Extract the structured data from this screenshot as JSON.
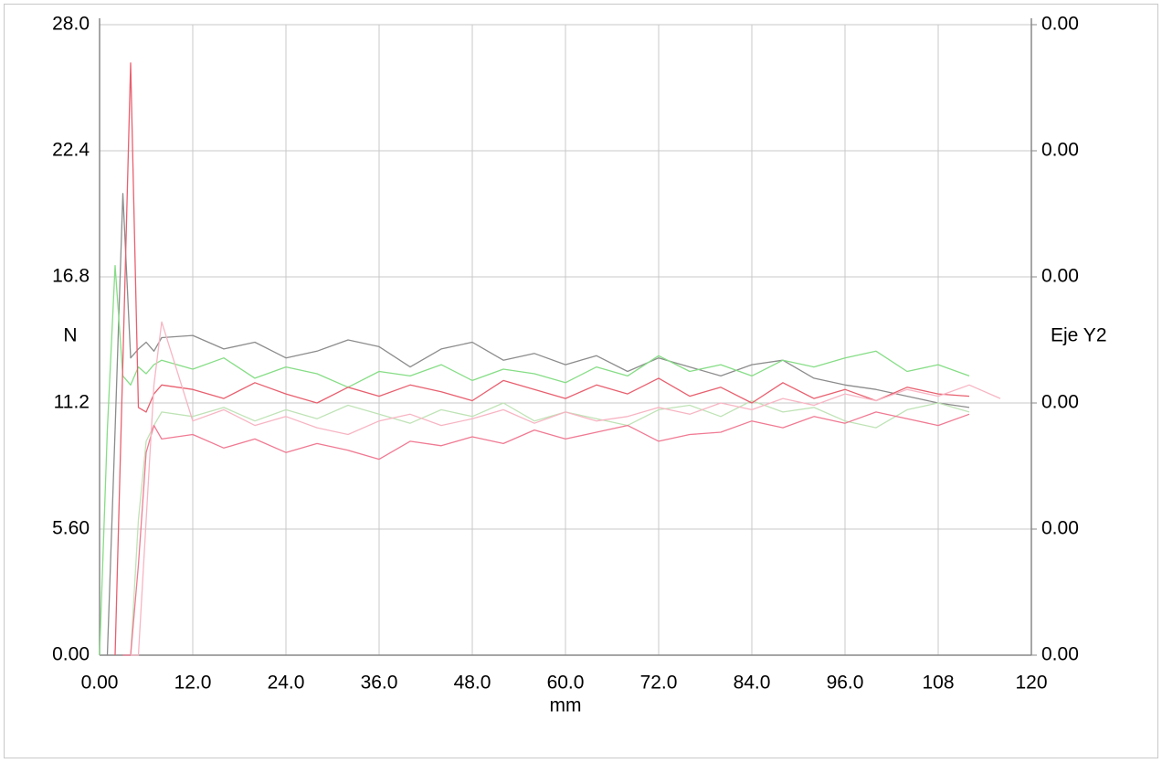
{
  "chart_data": {
    "type": "line",
    "x_label": "mm",
    "y_label": "N",
    "y2_label": "Eje Y2",
    "xlim": [
      0,
      120
    ],
    "ylim": [
      0,
      28
    ],
    "y2lim": [
      0,
      0.005
    ],
    "grid": true,
    "xticks": [
      {
        "value": 0,
        "label": "0.00"
      },
      {
        "value": 12,
        "label": "12.0"
      },
      {
        "value": 24,
        "label": "24.0"
      },
      {
        "value": 36,
        "label": "36.0"
      },
      {
        "value": 48,
        "label": "48.0"
      },
      {
        "value": 60,
        "label": "60.0"
      },
      {
        "value": 72,
        "label": "72.0"
      },
      {
        "value": 84,
        "label": "84.0"
      },
      {
        "value": 96,
        "label": "96.0"
      },
      108,
      120
    ],
    "yticks": [
      {
        "value": 0,
        "label": "0.00"
      },
      {
        "value": 5.6,
        "label": "5.60"
      },
      11.2,
      16.8,
      22.4,
      {
        "value": 28,
        "label": "28.0"
      }
    ],
    "y2ticks": [
      {
        "value": 0,
        "label": "0.00"
      },
      {
        "value": 0.001,
        "label": "0.00"
      },
      {
        "value": 0.002,
        "label": "0.00"
      },
      {
        "value": 0.003,
        "label": "0.00"
      },
      {
        "value": 0.004,
        "label": "0.00"
      },
      {
        "value": 0.005,
        "label": "0.00"
      }
    ],
    "x": [
      0,
      1,
      2,
      3,
      4,
      5,
      6,
      7,
      8,
      12,
      16,
      20,
      24,
      28,
      32,
      36,
      40,
      44,
      48,
      52,
      56,
      60,
      64,
      68,
      72,
      76,
      80,
      84,
      88,
      92,
      96,
      100,
      104,
      108,
      112,
      116
    ],
    "series": [
      {
        "color": "#8c8c8c",
        "values": [
          null,
          0,
          10,
          20.5,
          13.2,
          13.6,
          13.9,
          13.5,
          14.1,
          14.2,
          13.6,
          13.9,
          13.2,
          13.5,
          14.0,
          13.7,
          12.8,
          13.6,
          13.9,
          13.1,
          13.4,
          12.9,
          13.3,
          12.6,
          13.2,
          12.8,
          12.4,
          12.9,
          13.1,
          12.3,
          12.0,
          11.8,
          11.5,
          11.2,
          11.0,
          null
        ]
      },
      {
        "color": "#86dd86",
        "values": [
          0,
          10,
          17.3,
          12.4,
          12.0,
          12.8,
          12.5,
          12.9,
          13.1,
          12.7,
          13.2,
          12.3,
          12.8,
          12.5,
          11.9,
          12.6,
          12.4,
          12.9,
          12.2,
          12.7,
          12.5,
          12.1,
          12.8,
          12.4,
          13.3,
          12.6,
          12.9,
          12.4,
          13.1,
          12.8,
          13.2,
          13.5,
          12.6,
          12.9,
          12.4,
          null
        ]
      },
      {
        "color": "#bfe3b6",
        "values": [
          null,
          null,
          null,
          null,
          0,
          6,
          9.5,
          10.2,
          10.8,
          10.6,
          11.0,
          10.4,
          10.9,
          10.5,
          11.1,
          10.7,
          10.3,
          10.9,
          10.6,
          11.2,
          10.4,
          10.8,
          10.5,
          10.2,
          10.9,
          11.1,
          10.6,
          11.3,
          10.8,
          11.0,
          10.4,
          10.1,
          10.9,
          11.2,
          10.8,
          null
        ]
      },
      {
        "color": "#e8606f",
        "values": [
          null,
          null,
          0,
          13,
          26.3,
          11.0,
          10.8,
          11.6,
          12.0,
          11.8,
          11.4,
          12.1,
          11.6,
          11.2,
          11.9,
          11.5,
          12.0,
          11.7,
          11.3,
          12.2,
          11.8,
          11.4,
          12.0,
          11.6,
          12.3,
          11.5,
          11.9,
          11.2,
          12.1,
          11.4,
          11.8,
          11.3,
          11.9,
          11.6,
          11.5,
          null
        ]
      },
      {
        "color": "#f07a93",
        "values": [
          null,
          null,
          null,
          0,
          0,
          4,
          9,
          10.2,
          9.6,
          9.8,
          9.2,
          9.6,
          9.0,
          9.4,
          9.1,
          8.7,
          9.5,
          9.3,
          9.7,
          9.4,
          10.0,
          9.6,
          9.9,
          10.2,
          9.5,
          9.8,
          9.9,
          10.4,
          10.1,
          10.6,
          10.3,
          10.8,
          10.5,
          10.2,
          10.7,
          null
        ]
      },
      {
        "color": "#f7b5c3",
        "values": [
          null,
          null,
          null,
          null,
          0,
          0,
          6,
          12,
          14.8,
          10.4,
          10.9,
          10.2,
          10.6,
          10.1,
          9.8,
          10.4,
          10.7,
          10.2,
          10.5,
          10.9,
          10.3,
          10.8,
          10.4,
          10.6,
          11.0,
          10.7,
          11.2,
          10.9,
          11.4,
          11.1,
          11.6,
          11.3,
          11.8,
          11.5,
          12.0,
          11.4
        ]
      }
    ]
  }
}
